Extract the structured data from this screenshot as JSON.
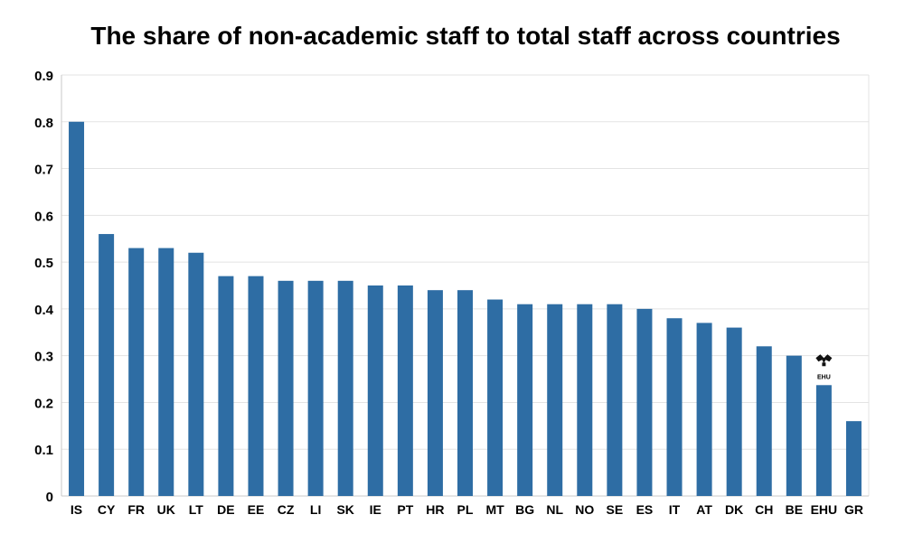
{
  "chart_data": {
    "type": "bar",
    "title": "The share of non-academic staff to total staff across countries",
    "xlabel": "",
    "ylabel": "",
    "categories": [
      "IS",
      "CY",
      "FR",
      "UK",
      "LT",
      "DE",
      "EE",
      "CZ",
      "LI",
      "SK",
      "IE",
      "PT",
      "HR",
      "PL",
      "MT",
      "BG",
      "NL",
      "NO",
      "SE",
      "ES",
      "IT",
      "AT",
      "DK",
      "CH",
      "BE",
      "EHU",
      "GR"
    ],
    "values": [
      0.8,
      0.56,
      0.53,
      0.53,
      0.52,
      0.47,
      0.47,
      0.46,
      0.46,
      0.46,
      0.45,
      0.45,
      0.44,
      0.44,
      0.42,
      0.41,
      0.41,
      0.41,
      0.41,
      0.4,
      0.38,
      0.37,
      0.36,
      0.32,
      0.3,
      0.237,
      0.16
    ],
    "ylim": [
      0,
      0.9
    ],
    "yticks": [
      "0",
      "0.1",
      "0.2",
      "0.3",
      "0.4",
      "0.5",
      "0.6",
      "0.7",
      "0.8",
      "0.9"
    ],
    "grid": true,
    "legend": "none",
    "bar_color": "#2e6da4",
    "grid_color": "#e3e3e3",
    "annotation": {
      "category": "EHU",
      "icon": "ehu-logo-icon",
      "text": "EHU"
    }
  }
}
